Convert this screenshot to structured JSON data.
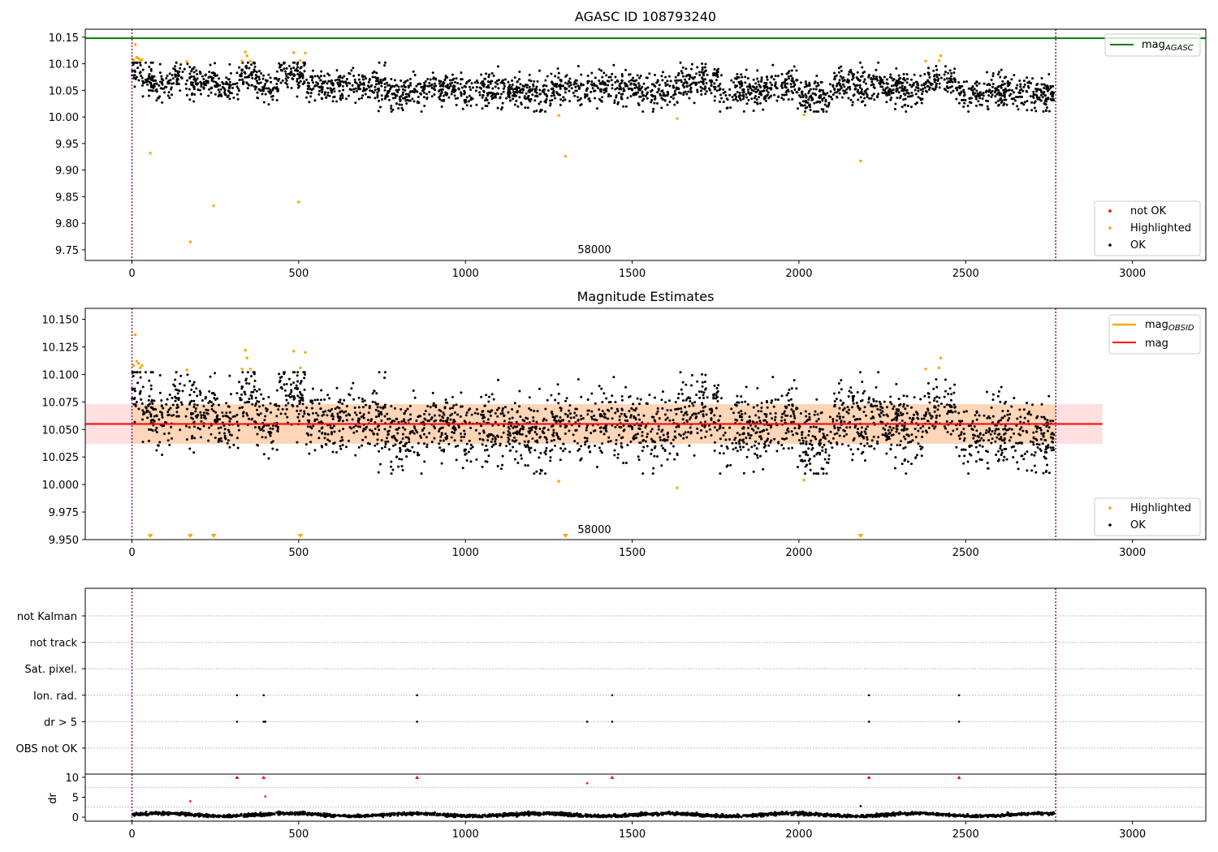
{
  "chart_data": [
    {
      "type": "scatter",
      "title": "AGASC ID 108793240",
      "xlim": [
        -140,
        3220
      ],
      "ylim": [
        9.73,
        10.165
      ],
      "x_ticks": [
        "0",
        "500",
        "1000",
        "1500",
        "2000",
        "2500",
        "3000"
      ],
      "y_ticks": [
        "9.75",
        "9.80",
        "9.85",
        "9.90",
        "9.95",
        "10.00",
        "10.05",
        "10.10",
        "10.15"
      ],
      "annotation": "58000",
      "annotation_x": 1380,
      "vertical_lines": [
        0,
        2770
      ],
      "mag_agasc": 10.148,
      "legend_upper": [
        "mag_AGASC"
      ],
      "legend_upper_main": "mag",
      "legend_upper_sub": "AGASC",
      "legend_lower": [
        "not OK",
        "Highlighted",
        "OK"
      ],
      "ok_points": {
        "n": 2700,
        "x_range": [
          0,
          2765
        ],
        "band": [
          10.01,
          10.102
        ],
        "segments": [
          {
            "x0": 0,
            "x1": 20,
            "m": 10.088
          },
          {
            "x0": 20,
            "x1": 60,
            "m": 10.075
          },
          {
            "x0": 60,
            "x1": 120,
            "m": 10.06
          },
          {
            "x0": 120,
            "x1": 180,
            "m": 10.074
          },
          {
            "x0": 180,
            "x1": 250,
            "m": 10.065
          },
          {
            "x0": 250,
            "x1": 320,
            "m": 10.055
          },
          {
            "x0": 320,
            "x1": 370,
            "m": 10.08
          },
          {
            "x0": 370,
            "x1": 440,
            "m": 10.055
          },
          {
            "x0": 440,
            "x1": 520,
            "m": 10.08
          },
          {
            "x0": 520,
            "x1": 650,
            "m": 10.058
          },
          {
            "x0": 650,
            "x1": 760,
            "m": 10.062
          },
          {
            "x0": 760,
            "x1": 880,
            "m": 10.048
          },
          {
            "x0": 880,
            "x1": 1100,
            "m": 10.055
          },
          {
            "x0": 1100,
            "x1": 1250,
            "m": 10.045
          },
          {
            "x0": 1250,
            "x1": 1500,
            "m": 10.055
          },
          {
            "x0": 1500,
            "x1": 1640,
            "m": 10.05
          },
          {
            "x0": 1640,
            "x1": 1760,
            "m": 10.068
          },
          {
            "x0": 1760,
            "x1": 1900,
            "m": 10.048
          },
          {
            "x0": 1900,
            "x1": 2000,
            "m": 10.058
          },
          {
            "x0": 2000,
            "x1": 2100,
            "m": 10.038
          },
          {
            "x0": 2100,
            "x1": 2250,
            "m": 10.06
          },
          {
            "x0": 2250,
            "x1": 2370,
            "m": 10.052
          },
          {
            "x0": 2370,
            "x1": 2470,
            "m": 10.068
          },
          {
            "x0": 2470,
            "x1": 2765,
            "m": 10.046
          }
        ]
      },
      "highlighted_points": [
        {
          "x": 5,
          "y": 10.108
        },
        {
          "x": 10,
          "y": 10.136
        },
        {
          "x": 14,
          "y": 10.112
        },
        {
          "x": 20,
          "y": 10.11
        },
        {
          "x": 25,
          "y": 10.106
        },
        {
          "x": 30,
          "y": 10.108
        },
        {
          "x": 55,
          "y": 9.932
        },
        {
          "x": 165,
          "y": 10.104
        },
        {
          "x": 175,
          "y": 9.765
        },
        {
          "x": 245,
          "y": 9.833
        },
        {
          "x": 330,
          "y": 10.105
        },
        {
          "x": 340,
          "y": 10.122
        },
        {
          "x": 345,
          "y": 10.115
        },
        {
          "x": 355,
          "y": 10.105
        },
        {
          "x": 485,
          "y": 10.121
        },
        {
          "x": 500,
          "y": 9.84
        },
        {
          "x": 505,
          "y": 10.106
        },
        {
          "x": 520,
          "y": 10.12
        },
        {
          "x": 1280,
          "y": 10.003
        },
        {
          "x": 1300,
          "y": 9.926
        },
        {
          "x": 1635,
          "y": 9.997
        },
        {
          "x": 2015,
          "y": 10.004
        },
        {
          "x": 2185,
          "y": 9.917
        },
        {
          "x": 2380,
          "y": 10.105
        },
        {
          "x": 2420,
          "y": 10.106
        },
        {
          "x": 2425,
          "y": 10.115
        }
      ]
    },
    {
      "type": "scatter",
      "title": "Magnitude Estimates",
      "xlim": [
        -140,
        3220
      ],
      "ylim": [
        9.95,
        10.16
      ],
      "x_ticks": [
        "0",
        "500",
        "1000",
        "1500",
        "2000",
        "2500",
        "3000"
      ],
      "y_ticks": [
        "9.950",
        "9.975",
        "10.000",
        "10.025",
        "10.050",
        "10.075",
        "10.100",
        "10.125",
        "10.150"
      ],
      "annotation": "58000",
      "annotation_x": 1380,
      "vertical_lines": [
        0,
        2770
      ],
      "mag": 10.055,
      "mag_band": [
        10.037,
        10.073
      ],
      "mag_band_x": [
        -140,
        2910
      ],
      "mag_obsid_band": [
        10.037,
        10.073
      ],
      "mag_obsid_band_x": [
        0,
        2770
      ],
      "legend_upper": [
        "mag_OBSID",
        "mag"
      ],
      "legend_upper_main": "mag",
      "legend_upper_sub": "OBSID",
      "legend_upper_mag": "mag",
      "legend_lower": [
        "Highlighted",
        "OK"
      ],
      "lower_limit_markers_x": [
        55,
        175,
        245,
        505,
        1300,
        2185
      ],
      "colors": {
        "mag": "#ff0000",
        "mag_obsid": "#ffa500",
        "highlighted": "#ffa500",
        "ok": "#000000",
        "not_ok": "#ff0000",
        "agasc": "#008000",
        "limits": "#800080"
      }
    },
    {
      "type": "scatter",
      "title": "",
      "xlim": [
        -140,
        3220
      ],
      "categories": [
        "not Kalman",
        "not track",
        "Sat. pixel.",
        "Ion. rad.",
        "dr > 5",
        "OBS not OK"
      ],
      "points": {
        "Ion. rad.": [
          315,
          395,
          855,
          1440,
          2210,
          2480
        ],
        "dr > 5": [
          315,
          395,
          400,
          855,
          1365,
          1440,
          2210,
          2480
        ]
      },
      "vertical_lines": [
        0,
        2770
      ]
    },
    {
      "type": "scatter",
      "title": "",
      "xlim": [
        -140,
        3220
      ],
      "ylim": [
        -1,
        10.8
      ],
      "ylabel": "dr",
      "y_ticks": [
        "0",
        "5",
        "10"
      ],
      "x_ticks": [
        "0",
        "500",
        "1000",
        "1500",
        "2000",
        "2500",
        "3000"
      ],
      "clipped_markers_x": [
        315,
        395,
        855,
        1440,
        2210,
        2480
      ],
      "red_points": [
        {
          "x": 175,
          "y": 4.0
        },
        {
          "x": 400,
          "y": 5.2
        },
        {
          "x": 1365,
          "y": 8.5
        }
      ],
      "black_points": [
        {
          "x": 2185,
          "y": 2.8
        }
      ],
      "vertical_lines": [
        0,
        2770
      ]
    }
  ]
}
